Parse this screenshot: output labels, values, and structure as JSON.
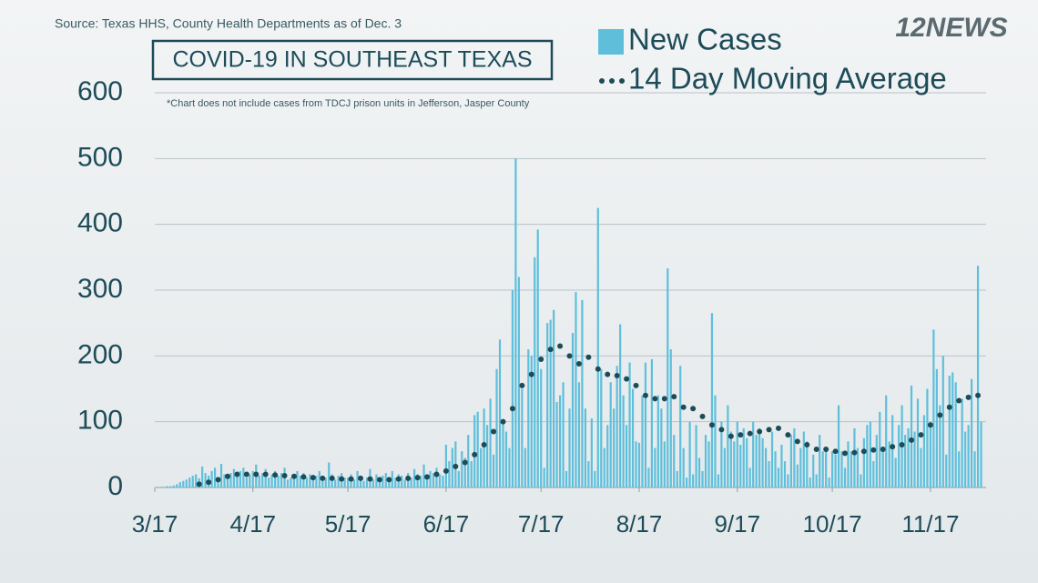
{
  "chart_data": {
    "type": "bar",
    "source": "Source: Texas HHS, County Health Departments as of Dec. 3",
    "title": "COVID-19 IN SOUTHEAST TEXAS",
    "note": "*Chart does not include cases from TDCJ prison units in Jefferson, Jasper County",
    "logo": "12NEWS",
    "xlim": [
      0,
      262
    ],
    "xticks": [
      {
        "value": 0,
        "label": "3/17"
      },
      {
        "value": 31,
        "label": "4/17"
      },
      {
        "value": 61,
        "label": "5/17"
      },
      {
        "value": 92,
        "label": "6/17"
      },
      {
        "value": 122,
        "label": "7/17"
      },
      {
        "value": 153,
        "label": "8/17"
      },
      {
        "value": 184,
        "label": "9/17"
      },
      {
        "value": 214,
        "label": "10/17"
      },
      {
        "value": 245,
        "label": "11/17"
      }
    ],
    "ylim": [
      0,
      600
    ],
    "yticks": [
      0,
      100,
      200,
      300,
      400,
      500,
      600
    ],
    "grid": true,
    "series": [
      {
        "name": "New Cases",
        "color": "#5fbfdb",
        "x": [
          0,
          1,
          2,
          3,
          4,
          5,
          6,
          7,
          8,
          9,
          10,
          11,
          12,
          13,
          14,
          15,
          16,
          17,
          18,
          19,
          20,
          21,
          22,
          23,
          24,
          25,
          26,
          27,
          28,
          29,
          30,
          31,
          32,
          33,
          34,
          35,
          36,
          37,
          38,
          39,
          40,
          41,
          42,
          43,
          44,
          45,
          46,
          47,
          48,
          49,
          50,
          51,
          52,
          53,
          54,
          55,
          56,
          57,
          58,
          59,
          60,
          61,
          62,
          63,
          64,
          65,
          66,
          67,
          68,
          69,
          70,
          71,
          72,
          73,
          74,
          75,
          76,
          77,
          78,
          79,
          80,
          81,
          82,
          83,
          84,
          85,
          86,
          87,
          88,
          89,
          90,
          91,
          92,
          93,
          94,
          95,
          96,
          97,
          98,
          99,
          100,
          101,
          102,
          103,
          104,
          105,
          106,
          107,
          108,
          109,
          110,
          111,
          112,
          113,
          114,
          115,
          116,
          117,
          118,
          119,
          120,
          121,
          122,
          123,
          124,
          125,
          126,
          127,
          128,
          129,
          130,
          131,
          132,
          133,
          134,
          135,
          136,
          137,
          138,
          139,
          140,
          141,
          142,
          143,
          144,
          145,
          146,
          147,
          148,
          149,
          150,
          151,
          152,
          153,
          154,
          155,
          156,
          157,
          158,
          159,
          160,
          161,
          162,
          163,
          164,
          165,
          166,
          167,
          168,
          169,
          170,
          171,
          172,
          173,
          174,
          175,
          176,
          177,
          178,
          179,
          180,
          181,
          182,
          183,
          184,
          185,
          186,
          187,
          188,
          189,
          190,
          191,
          192,
          193,
          194,
          195,
          196,
          197,
          198,
          199,
          200,
          201,
          202,
          203,
          204,
          205,
          206,
          207,
          208,
          209,
          210,
          211,
          212,
          213,
          214,
          215,
          216,
          217,
          218,
          219,
          220,
          221,
          222,
          223,
          224,
          225,
          226,
          227,
          228,
          229,
          230,
          231,
          232,
          233,
          234,
          235,
          236,
          237,
          238,
          239,
          240,
          241,
          242,
          243,
          244,
          245,
          246,
          247,
          248,
          249,
          250,
          251,
          252,
          253,
          254,
          255,
          256,
          257,
          258,
          259,
          260,
          261
        ],
        "values": [
          0,
          0,
          1,
          1,
          2,
          2,
          3,
          5,
          8,
          10,
          12,
          15,
          18,
          20,
          14,
          32,
          22,
          18,
          25,
          30,
          12,
          36,
          20,
          15,
          22,
          28,
          18,
          25,
          30,
          15,
          20,
          25,
          35,
          18,
          22,
          28,
          15,
          20,
          25,
          18,
          22,
          30,
          12,
          15,
          20,
          25,
          18,
          22,
          15,
          20,
          12,
          18,
          25,
          10,
          15,
          38,
          20,
          12,
          18,
          22,
          15,
          15,
          20,
          12,
          25,
          18,
          10,
          15,
          28,
          12,
          20,
          15,
          18,
          22,
          10,
          25,
          15,
          20,
          18,
          12,
          22,
          15,
          28,
          20,
          18,
          35,
          15,
          25,
          22,
          30,
          20,
          18,
          65,
          40,
          60,
          70,
          25,
          55,
          45,
          80,
          40,
          110,
          115,
          60,
          120,
          95,
          135,
          50,
          180,
          225,
          100,
          85,
          60,
          300,
          500,
          320,
          150,
          60,
          210,
          200,
          350,
          392,
          180,
          30,
          250,
          255,
          270,
          130,
          140,
          160,
          25,
          120,
          235,
          297,
          160,
          285,
          120,
          40,
          105,
          25,
          425,
          180,
          60,
          95,
          160,
          120,
          185,
          248,
          140,
          95,
          190,
          150,
          70,
          68,
          140,
          190,
          30,
          195,
          60,
          140,
          120,
          70,
          333,
          210,
          80,
          25,
          185,
          60,
          15,
          100,
          20,
          95,
          45,
          25,
          80,
          70,
          265,
          140,
          20,
          100,
          60,
          125,
          85,
          70,
          100,
          65,
          90,
          75,
          30,
          100,
          80,
          90,
          75,
          60,
          40,
          85,
          55,
          30,
          65,
          40,
          20,
          80,
          90,
          35,
          60,
          85,
          70,
          15,
          50,
          20,
          80,
          55,
          60,
          15,
          55,
          50,
          125,
          55,
          30,
          70,
          55,
          90,
          60,
          20,
          75,
          95,
          100,
          40,
          80,
          115,
          60,
          140,
          70,
          110,
          45,
          95,
          125,
          80,
          90,
          155,
          85,
          135,
          60,
          110,
          150,
          100,
          240,
          180,
          125,
          200,
          50,
          170,
          175,
          160,
          55,
          135,
          85,
          95,
          165,
          55,
          337,
          100
        ]
      },
      {
        "name": "14 Day Moving Average",
        "color": "#1d4c58",
        "type": "dots",
        "x": [
          14,
          17,
          20,
          23,
          26,
          29,
          32,
          35,
          38,
          41,
          44,
          47,
          50,
          53,
          56,
          59,
          62,
          65,
          68,
          71,
          74,
          77,
          80,
          83,
          86,
          89,
          92,
          95,
          98,
          101,
          104,
          107,
          110,
          113,
          116,
          119,
          122,
          125,
          128,
          131,
          134,
          137,
          140,
          143,
          146,
          149,
          152,
          155,
          158,
          161,
          164,
          167,
          170,
          173,
          176,
          179,
          182,
          185,
          188,
          191,
          194,
          197,
          200,
          203,
          206,
          209,
          212,
          215,
          218,
          221,
          224,
          227,
          230,
          233,
          236,
          239,
          242,
          245,
          248,
          251,
          254,
          257,
          260
        ],
        "values": [
          5,
          8,
          12,
          17,
          20,
          20,
          20,
          20,
          19,
          18,
          17,
          16,
          15,
          14,
          14,
          13,
          13,
          14,
          13,
          12,
          12,
          13,
          14,
          15,
          16,
          20,
          25,
          32,
          38,
          50,
          65,
          85,
          100,
          120,
          155,
          172,
          195,
          210,
          215,
          200,
          188,
          198,
          180,
          172,
          170,
          165,
          155,
          140,
          135,
          135,
          138,
          122,
          120,
          108,
          95,
          88,
          78,
          80,
          82,
          85,
          88,
          90,
          80,
          70,
          65,
          58,
          58,
          55,
          52,
          53,
          55,
          57,
          58,
          62,
          65,
          72,
          80,
          95,
          110,
          122,
          132,
          137,
          140
        ]
      }
    ]
  }
}
